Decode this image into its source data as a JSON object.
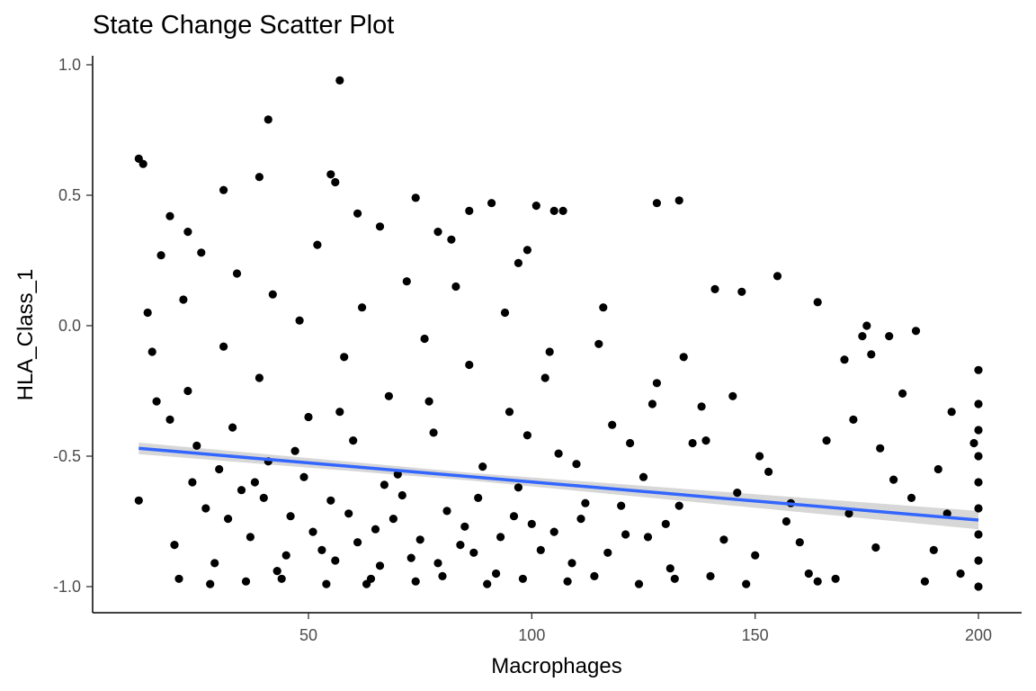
{
  "chart_data": {
    "type": "scatter",
    "title": "State Change Scatter Plot",
    "xlabel": "Macrophages",
    "ylabel": "HLA_Class_1",
    "xlim": [
      5,
      205
    ],
    "ylim": [
      -1.1,
      1.02
    ],
    "x_ticks": [
      50,
      100,
      150,
      200
    ],
    "x_tick_labels": [
      "50",
      "100",
      "150",
      "200"
    ],
    "y_ticks": [
      -1.0,
      -0.5,
      0.0,
      0.5,
      1.0
    ],
    "y_tick_labels": [
      "-1.0",
      "-0.5",
      "0.0",
      "0.5",
      "1.0"
    ],
    "grid": false,
    "legend": "none",
    "point_color": "#000000",
    "trend_line": {
      "method": "linear fit with confidence band",
      "color": "#3366FF",
      "band_color": "#D3D3D3",
      "x": [
        12,
        200
      ],
      "y": [
        -0.47,
        -0.745
      ],
      "band_halfwidth": [
        0.022,
        0.035
      ]
    },
    "points": [
      {
        "x": 12,
        "y": 0.64
      },
      {
        "x": 13,
        "y": 0.62
      },
      {
        "x": 57,
        "y": 0.94
      },
      {
        "x": 41,
        "y": 0.79
      },
      {
        "x": 31,
        "y": 0.52
      },
      {
        "x": 55,
        "y": 0.58
      },
      {
        "x": 56,
        "y": 0.55
      },
      {
        "x": 74,
        "y": 0.49
      },
      {
        "x": 128,
        "y": 0.47
      },
      {
        "x": 133,
        "y": 0.48
      },
      {
        "x": 101,
        "y": 0.46
      },
      {
        "x": 105,
        "y": 0.44
      },
      {
        "x": 91,
        "y": 0.47
      },
      {
        "x": 86,
        "y": 0.44
      },
      {
        "x": 39,
        "y": 0.57
      },
      {
        "x": 61,
        "y": 0.43
      },
      {
        "x": 155,
        "y": 0.19
      },
      {
        "x": 164,
        "y": 0.09
      },
      {
        "x": 141,
        "y": 0.14
      },
      {
        "x": 147,
        "y": 0.13
      },
      {
        "x": 186,
        "y": -0.02
      },
      {
        "x": 175,
        "y": 0.0
      },
      {
        "x": 180,
        "y": -0.04
      },
      {
        "x": 14,
        "y": 0.05
      },
      {
        "x": 15,
        "y": -0.1
      },
      {
        "x": 16,
        "y": -0.29
      },
      {
        "x": 12,
        "y": -0.67
      },
      {
        "x": 17,
        "y": 0.27
      },
      {
        "x": 19,
        "y": 0.42
      },
      {
        "x": 23,
        "y": 0.36
      },
      {
        "x": 66,
        "y": 0.38
      },
      {
        "x": 79,
        "y": 0.36
      },
      {
        "x": 82,
        "y": 0.33
      },
      {
        "x": 99,
        "y": 0.29
      },
      {
        "x": 97,
        "y": 0.24
      },
      {
        "x": 107,
        "y": 0.44
      },
      {
        "x": 200,
        "y": -0.17
      },
      {
        "x": 200,
        "y": -0.3
      },
      {
        "x": 200,
        "y": -0.4
      },
      {
        "x": 200,
        "y": -0.5
      },
      {
        "x": 200,
        "y": -0.6
      },
      {
        "x": 200,
        "y": -0.7
      },
      {
        "x": 200,
        "y": -0.8
      },
      {
        "x": 200,
        "y": -0.9
      },
      {
        "x": 200,
        "y": -1.0
      },
      {
        "x": 199,
        "y": -0.45
      },
      {
        "x": 194,
        "y": -0.33
      },
      {
        "x": 191,
        "y": -0.55
      },
      {
        "x": 193,
        "y": -0.72
      },
      {
        "x": 196,
        "y": -0.95
      },
      {
        "x": 188,
        "y": -0.98
      },
      {
        "x": 183,
        "y": -0.26
      },
      {
        "x": 181,
        "y": -0.59
      },
      {
        "x": 178,
        "y": -0.47
      },
      {
        "x": 172,
        "y": -0.36
      },
      {
        "x": 170,
        "y": -0.13
      },
      {
        "x": 174,
        "y": -0.04
      },
      {
        "x": 176,
        "y": -0.11
      },
      {
        "x": 168,
        "y": -0.97
      },
      {
        "x": 164,
        "y": -0.98
      },
      {
        "x": 160,
        "y": -0.83
      },
      {
        "x": 157,
        "y": -0.75
      },
      {
        "x": 153,
        "y": -0.56
      },
      {
        "x": 150,
        "y": -0.88
      },
      {
        "x": 146,
        "y": -0.64
      },
      {
        "x": 143,
        "y": -0.82
      },
      {
        "x": 140,
        "y": -0.96
      },
      {
        "x": 138,
        "y": -0.31
      },
      {
        "x": 136,
        "y": -0.45
      },
      {
        "x": 133,
        "y": -0.69
      },
      {
        "x": 131,
        "y": -0.93
      },
      {
        "x": 128,
        "y": -0.22
      },
      {
        "x": 125,
        "y": -0.58
      },
      {
        "x": 121,
        "y": -0.8
      },
      {
        "x": 118,
        "y": -0.38
      },
      {
        "x": 115,
        "y": -0.07
      },
      {
        "x": 112,
        "y": -0.68
      },
      {
        "x": 109,
        "y": -0.91
      },
      {
        "x": 106,
        "y": -0.49
      },
      {
        "x": 103,
        "y": -0.2
      },
      {
        "x": 100,
        "y": -0.76
      },
      {
        "x": 97,
        "y": -0.62
      },
      {
        "x": 95,
        "y": -0.33
      },
      {
        "x": 92,
        "y": -0.95
      },
      {
        "x": 89,
        "y": -0.54
      },
      {
        "x": 86,
        "y": -0.15
      },
      {
        "x": 84,
        "y": -0.84
      },
      {
        "x": 81,
        "y": -0.71
      },
      {
        "x": 78,
        "y": -0.41
      },
      {
        "x": 76,
        "y": -0.05
      },
      {
        "x": 73,
        "y": -0.89
      },
      {
        "x": 70,
        "y": -0.57
      },
      {
        "x": 68,
        "y": -0.27
      },
      {
        "x": 65,
        "y": -0.78
      },
      {
        "x": 63,
        "y": -0.99
      },
      {
        "x": 60,
        "y": -0.44
      },
      {
        "x": 58,
        "y": -0.12
      },
      {
        "x": 55,
        "y": -0.67
      },
      {
        "x": 53,
        "y": -0.86
      },
      {
        "x": 50,
        "y": -0.35
      },
      {
        "x": 48,
        "y": 0.02
      },
      {
        "x": 46,
        "y": -0.73
      },
      {
        "x": 43,
        "y": -0.94
      },
      {
        "x": 41,
        "y": -0.52
      },
      {
        "x": 39,
        "y": -0.2
      },
      {
        "x": 37,
        "y": -0.81
      },
      {
        "x": 35,
        "y": -0.63
      },
      {
        "x": 33,
        "y": -0.39
      },
      {
        "x": 31,
        "y": -0.08
      },
      {
        "x": 29,
        "y": -0.91
      },
      {
        "x": 27,
        "y": -0.7
      },
      {
        "x": 25,
        "y": -0.46
      },
      {
        "x": 23,
        "y": -0.25
      },
      {
        "x": 21,
        "y": -0.97
      },
      {
        "x": 20,
        "y": -0.84
      },
      {
        "x": 19,
        "y": -0.36
      },
      {
        "x": 22,
        "y": 0.1
      },
      {
        "x": 26,
        "y": 0.28
      },
      {
        "x": 30,
        "y": -0.55
      },
      {
        "x": 34,
        "y": 0.2
      },
      {
        "x": 38,
        "y": -0.6
      },
      {
        "x": 42,
        "y": 0.12
      },
      {
        "x": 47,
        "y": -0.48
      },
      {
        "x": 52,
        "y": 0.31
      },
      {
        "x": 57,
        "y": -0.33
      },
      {
        "x": 62,
        "y": 0.07
      },
      {
        "x": 67,
        "y": -0.61
      },
      {
        "x": 72,
        "y": 0.17
      },
      {
        "x": 77,
        "y": -0.29
      },
      {
        "x": 83,
        "y": 0.15
      },
      {
        "x": 88,
        "y": -0.66
      },
      {
        "x": 94,
        "y": 0.05
      },
      {
        "x": 99,
        "y": -0.42
      },
      {
        "x": 104,
        "y": -0.1
      },
      {
        "x": 110,
        "y": -0.53
      },
      {
        "x": 116,
        "y": 0.07
      },
      {
        "x": 122,
        "y": -0.45
      },
      {
        "x": 127,
        "y": -0.3
      },
      {
        "x": 134,
        "y": -0.12
      },
      {
        "x": 139,
        "y": -0.44
      },
      {
        "x": 145,
        "y": -0.27
      },
      {
        "x": 151,
        "y": -0.5
      },
      {
        "x": 158,
        "y": -0.68
      },
      {
        "x": 166,
        "y": -0.44
      },
      {
        "x": 171,
        "y": -0.72
      },
      {
        "x": 177,
        "y": -0.85
      },
      {
        "x": 185,
        "y": -0.66
      },
      {
        "x": 190,
        "y": -0.86
      },
      {
        "x": 28,
        "y": -0.99
      },
      {
        "x": 36,
        "y": -0.98
      },
      {
        "x": 44,
        "y": -0.97
      },
      {
        "x": 54,
        "y": -0.99
      },
      {
        "x": 64,
        "y": -0.97
      },
      {
        "x": 74,
        "y": -0.98
      },
      {
        "x": 80,
        "y": -0.96
      },
      {
        "x": 90,
        "y": -0.99
      },
      {
        "x": 98,
        "y": -0.97
      },
      {
        "x": 108,
        "y": -0.98
      },
      {
        "x": 114,
        "y": -0.96
      },
      {
        "x": 124,
        "y": -0.99
      },
      {
        "x": 132,
        "y": -0.97
      },
      {
        "x": 148,
        "y": -0.99
      },
      {
        "x": 162,
        "y": -0.95
      },
      {
        "x": 24,
        "y": -0.6
      },
      {
        "x": 32,
        "y": -0.74
      },
      {
        "x": 40,
        "y": -0.66
      },
      {
        "x": 45,
        "y": -0.88
      },
      {
        "x": 49,
        "y": -0.58
      },
      {
        "x": 51,
        "y": -0.79
      },
      {
        "x": 56,
        "y": -0.9
      },
      {
        "x": 59,
        "y": -0.72
      },
      {
        "x": 61,
        "y": -0.83
      },
      {
        "x": 66,
        "y": -0.92
      },
      {
        "x": 69,
        "y": -0.74
      },
      {
        "x": 71,
        "y": -0.65
      },
      {
        "x": 75,
        "y": -0.82
      },
      {
        "x": 79,
        "y": -0.91
      },
      {
        "x": 85,
        "y": -0.77
      },
      {
        "x": 87,
        "y": -0.87
      },
      {
        "x": 93,
        "y": -0.81
      },
      {
        "x": 96,
        "y": -0.73
      },
      {
        "x": 102,
        "y": -0.86
      },
      {
        "x": 105,
        "y": -0.79
      },
      {
        "x": 111,
        "y": -0.74
      },
      {
        "x": 117,
        "y": -0.87
      },
      {
        "x": 120,
        "y": -0.69
      },
      {
        "x": 126,
        "y": -0.81
      },
      {
        "x": 130,
        "y": -0.76
      }
    ]
  }
}
